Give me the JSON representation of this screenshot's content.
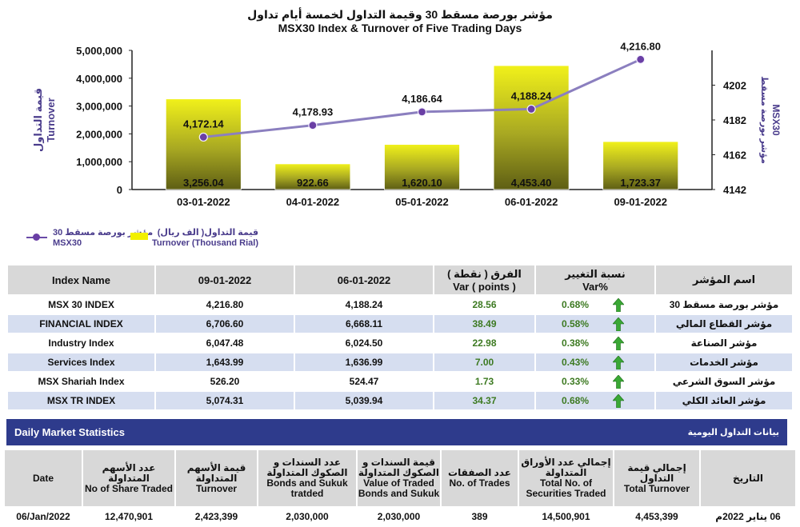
{
  "title_ar": "مؤشر بورصة مسقط 30 وقيمة التداول لخمسة أيام تداول",
  "title_en": "MSX30 Index & Turnover of Five Trading Days",
  "chart_data": {
    "type": "bar",
    "categories": [
      "03-01-2022",
      "04-01-2022",
      "05-01-2022",
      "06-01-2022",
      "09-01-2022"
    ],
    "series": [
      {
        "name": "Turnover (Thousand Rial)",
        "name_ar": "قيمة التداول( الف ريال)",
        "type": "bar",
        "axis": "left",
        "values": [
          3256.04,
          922.66,
          1620.1,
          4453.4,
          1723.37
        ],
        "labels": [
          "3,256.04",
          "922.66",
          "1,620.10",
          "4,453.40",
          "1,723.37"
        ],
        "bar_heights": [
          3256040,
          922660,
          1620100,
          4453400,
          1723370
        ]
      },
      {
        "name": "MSX30",
        "name_ar": "مؤشر بورصة مسقط 30",
        "type": "line",
        "axis": "right",
        "values": [
          4172.14,
          4178.93,
          4186.64,
          4188.24,
          4216.8
        ],
        "labels": [
          "4,172.14",
          "4,178.93",
          "4,186.64",
          "4,188.24",
          "4,216.80"
        ]
      }
    ],
    "left_axis": {
      "label_en": "Turnover",
      "label_ar": "قيمة التداول",
      "ylim": [
        0,
        5000000
      ],
      "ticks": [
        "0",
        "1,000,000",
        "2,000,000",
        "3,000,000",
        "4,000,000",
        "5,000,000"
      ]
    },
    "right_axis": {
      "label_en": "MSX30",
      "label_ar": "مؤشر بورصة مسقط",
      "ylim": [
        4142,
        4222
      ],
      "ticks": [
        4142,
        4162,
        4182,
        4202
      ]
    },
    "grid": false,
    "legend": "bottom-left",
    "colors": {
      "bar_top": "#eeee10",
      "bar_bottom": "#5f5f12",
      "line": "#8b7fbf",
      "marker": "#6a3fa5",
      "axis_text": "#4a3c8c"
    }
  },
  "index_table": {
    "headers": {
      "name": "Index Name",
      "d1": "09-01-2022",
      "d2": "06-01-2022",
      "var_ar": "الفرق ( نقطة )",
      "var_en": "Var ( points )",
      "pct_ar": "نسبة التغيير",
      "pct_en": "Var%",
      "name_ar": "اسم المؤشر"
    },
    "rows": [
      {
        "name": "MSX 30 INDEX",
        "d1": "4,216.80",
        "d2": "4,188.24",
        "var": "28.56",
        "pct": "0.68%",
        "name_ar": "مؤشر بورصة مسقط 30"
      },
      {
        "name": "FINANCIAL INDEX",
        "d1": "6,706.60",
        "d2": "6,668.11",
        "var": "38.49",
        "pct": "0.58%",
        "name_ar": "مؤشر القطاع المالي"
      },
      {
        "name": "Industry Index",
        "d1": "6,047.48",
        "d2": "6,024.50",
        "var": "22.98",
        "pct": "0.38%",
        "name_ar": "مؤشر الصناعة"
      },
      {
        "name": "Services Index",
        "d1": "1,643.99",
        "d2": "1,636.99",
        "var": "7.00",
        "pct": "0.43%",
        "name_ar": "مؤشر الخدمات"
      },
      {
        "name": "MSX Shariah Index",
        "d1": "526.20",
        "d2": "524.47",
        "var": "1.73",
        "pct": "0.33%",
        "name_ar": "مؤشر السوق الشرعي"
      },
      {
        "name": "MSX TR INDEX",
        "d1": "5,074.31",
        "d2": "5,039.94",
        "var": "34.37",
        "pct": "0.68%",
        "name_ar": "مؤشر العائد الكلي"
      }
    ],
    "arrow_icon": "up-arrow-icon",
    "arrow_color": "#3aa835"
  },
  "daily_stats": {
    "title_en": "Daily Market Statistics",
    "title_ar": "بيانات التداول اليومية",
    "headers": {
      "date": "Date",
      "shares_ar": "عدد الأسهم المتداولة",
      "shares_en": "No of Share Traded",
      "shares_value_ar": "قيمة الأسهم المتداولة",
      "shares_value_en": "Turnover",
      "bonds_count_ar": "عدد السندات و الصكوك المتداولة",
      "bonds_count_en": "Bonds and Sukuk tratded",
      "bonds_value_ar": "قيمة السندات و الصكوك المتداولة",
      "bonds_value_en": "Value of Traded Bonds and Sukuk",
      "trades_ar": "عدد الصفقات",
      "trades_en": "No. of Trades",
      "securities_ar": "إجمالي عدد الأوراق المتداولة",
      "securities_en": "Total No. of Securities Traded",
      "turnover_ar": "إجمالي قيمة التداول",
      "turnover_en": "Total Turnover",
      "date_ar": "التاريخ"
    },
    "row": {
      "date": "06/Jan/2022",
      "shares": "12,470,901",
      "shares_value": "2,423,399",
      "bonds_count": "2,030,000",
      "bonds_value": "2,030,000",
      "trades": "389",
      "securities": "14,500,901",
      "turnover": "4,453,399",
      "date_ar": "06 يناير 2022م"
    }
  }
}
